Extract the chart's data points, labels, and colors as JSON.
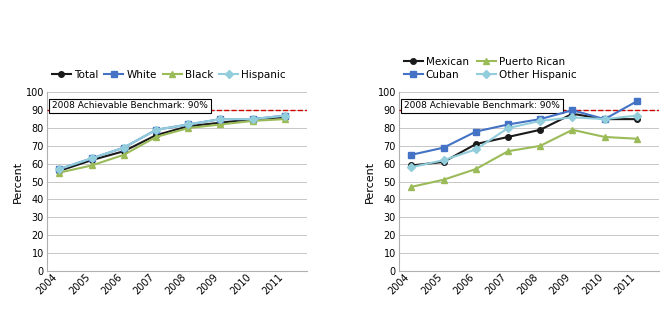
{
  "years": [
    2004,
    2005,
    2006,
    2007,
    2008,
    2009,
    2010,
    2011
  ],
  "left": {
    "Total": [
      56,
      62,
      67,
      76,
      81,
      83,
      85,
      86
    ],
    "White": [
      57,
      63,
      69,
      79,
      82,
      85,
      85,
      87
    ],
    "Black": [
      55,
      59,
      65,
      75,
      80,
      82,
      84,
      85
    ],
    "Hispanic": [
      57,
      63,
      69,
      79,
      82,
      85,
      85,
      87
    ]
  },
  "left_colors": {
    "Total": "#1a1a1a",
    "White": "#4472c4",
    "Black": "#9bbb59",
    "Hispanic": "#92cddc"
  },
  "left_markers": {
    "Total": "o",
    "White": "s",
    "Black": "^",
    "Hispanic": "D"
  },
  "left_legend_order": [
    "Total",
    "White",
    "Black",
    "Hispanic"
  ],
  "right": {
    "Mexican": [
      59,
      61,
      71,
      75,
      79,
      88,
      85,
      85
    ],
    "Puerto Rican": [
      47,
      51,
      57,
      67,
      70,
      79,
      75,
      74
    ],
    "Cuban": [
      65,
      69,
      78,
      82,
      85,
      90,
      85,
      95
    ],
    "Other Hispanic": [
      58,
      62,
      68,
      80,
      84,
      86,
      85,
      87
    ]
  },
  "right_colors": {
    "Mexican": "#1a1a1a",
    "Puerto Rican": "#9bbb59",
    "Cuban": "#4472c4",
    "Other Hispanic": "#92cddc"
  },
  "right_markers": {
    "Mexican": "o",
    "Puerto Rican": "^",
    "Cuban": "s",
    "Other Hispanic": "D"
  },
  "right_legend_order": [
    "Mexican",
    "Cuban",
    "Puerto Rican",
    "Other Hispanic"
  ],
  "benchmark_value": 90,
  "benchmark_label": "2008 Achievable Benchmark: 90%",
  "ylabel": "Percent",
  "ylim": [
    0,
    100
  ],
  "yticks": [
    0,
    10,
    20,
    30,
    40,
    50,
    60,
    70,
    80,
    90,
    100
  ],
  "benchmark_color": "#cc0000",
  "grid_color": "#b0b0b0",
  "background_color": "#ffffff",
  "line_width": 1.5,
  "marker_size": 4,
  "axis_fontsize": 7,
  "ylabel_fontsize": 8,
  "legend_fontsize": 7.5,
  "benchmark_fontsize": 6.5
}
